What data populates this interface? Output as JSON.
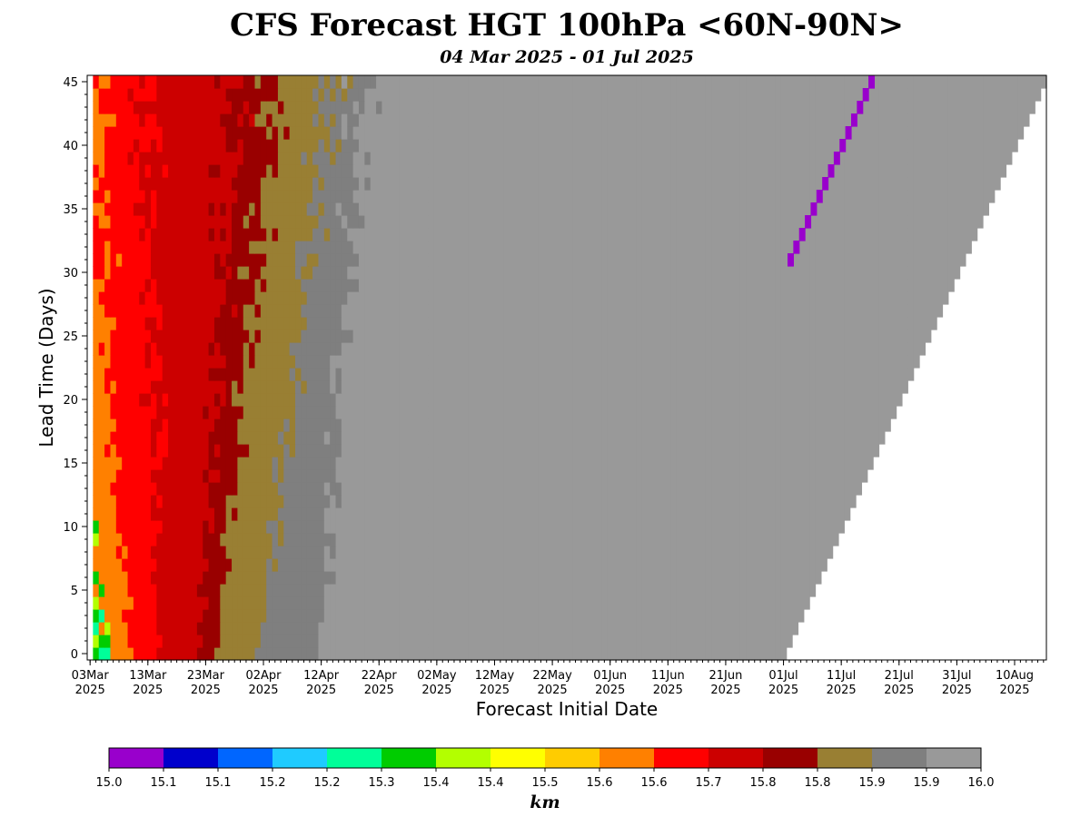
{
  "chart_data": {
    "type": "heatmap",
    "title": "CFS Forecast HGT 100hPa <60N-90N>",
    "subtitle": "04 Mar 2025 - 01 Jul 2025",
    "xlabel": "Forecast Initial Date",
    "ylabel": "Lead Time (Days)",
    "colorbar_label": "km",
    "x_start_date": "2025-03-04",
    "x_end_date": "2025-07-01",
    "xlim_days_from_03Mar": [
      -0.5,
      165.5
    ],
    "ylim": [
      -0.5,
      45.5
    ],
    "x_ticks": [
      {
        "line1": "03Mar",
        "line2": "2025",
        "day": 0
      },
      {
        "line1": "13Mar",
        "line2": "2025",
        "day": 10
      },
      {
        "line1": "23Mar",
        "line2": "2025",
        "day": 20
      },
      {
        "line1": "02Apr",
        "line2": "2025",
        "day": 30
      },
      {
        "line1": "12Apr",
        "line2": "2025",
        "day": 40
      },
      {
        "line1": "22Apr",
        "line2": "2025",
        "day": 50
      },
      {
        "line1": "02May",
        "line2": "2025",
        "day": 60
      },
      {
        "line1": "12May",
        "line2": "2025",
        "day": 70
      },
      {
        "line1": "22May",
        "line2": "2025",
        "day": 80
      },
      {
        "line1": "01Jun",
        "line2": "2025",
        "day": 90
      },
      {
        "line1": "11Jun",
        "line2": "2025",
        "day": 100
      },
      {
        "line1": "21Jun",
        "line2": "2025",
        "day": 110
      },
      {
        "line1": "01Jul",
        "line2": "2025",
        "day": 120
      },
      {
        "line1": "11Jul",
        "line2": "2025",
        "day": 130
      },
      {
        "line1": "21Jul",
        "line2": "2025",
        "day": 140
      },
      {
        "line1": "31Jul",
        "line2": "2025",
        "day": 150
      },
      {
        "line1": "10Aug",
        "line2": "2025",
        "day": 160
      }
    ],
    "y_ticks": [
      0,
      5,
      10,
      15,
      20,
      25,
      30,
      35,
      40,
      45
    ],
    "colorbar": {
      "colors": [
        "#9900cc",
        "#0000cc",
        "#0066ff",
        "#1fcbff",
        "#00ff99",
        "#00cc00",
        "#b3ff00",
        "#ffff00",
        "#ffcc00",
        "#ff8000",
        "#ff0000",
        "#cc0000",
        "#990000",
        "#997f33",
        "#7f7f7f",
        "#999999"
      ],
      "tick_labels": [
        "15.0",
        "15.1",
        "15.1",
        "15.2",
        "15.2",
        "15.3",
        "15.4",
        "15.4",
        "15.5",
        "15.6",
        "15.6",
        "15.7",
        "15.8",
        "15.8",
        "15.9",
        "15.9",
        "16.0"
      ]
    },
    "approx_boundaries": {
      "note": "color level boundaries as function of init day (from 04 Mar) at lead 0 and lead 45",
      "lead0": [
        3,
        7,
        12,
        19,
        22,
        29,
        40
      ],
      "lead45": [
        -10,
        0,
        10,
        25,
        32,
        42,
        47
      ]
    },
    "purple_streak": {
      "init_day_start": 121,
      "lead_start": 31,
      "lead_end": 45
    }
  }
}
